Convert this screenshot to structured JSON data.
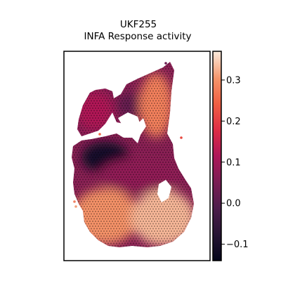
{
  "chart_data": {
    "type": "heatmap",
    "title": "UKF255",
    "subtitle": "INFA Response activity",
    "xlabel": "",
    "ylabel": "",
    "colormap": "rocket",
    "colorbar": {
      "vmin": -0.14,
      "vmax": 0.37,
      "ticks": [
        -0.1,
        0.0,
        0.1,
        0.2,
        0.3
      ],
      "tick_labels": [
        "−0.1",
        "0.0",
        "0.1",
        "0.2",
        "0.3"
      ]
    },
    "grid": false,
    "legend": "none",
    "spatial_regions": [
      {
        "region": "upper-left lobe",
        "value": 0.12
      },
      {
        "region": "upper-center",
        "value": 0.02
      },
      {
        "region": "upper-right crest",
        "value": 0.28
      },
      {
        "region": "left-middle dark patch",
        "value": -0.1
      },
      {
        "region": "central band",
        "value": 0.08
      },
      {
        "region": "lower-left",
        "value": 0.3
      },
      {
        "region": "lower-right",
        "value": 0.33
      }
    ]
  }
}
